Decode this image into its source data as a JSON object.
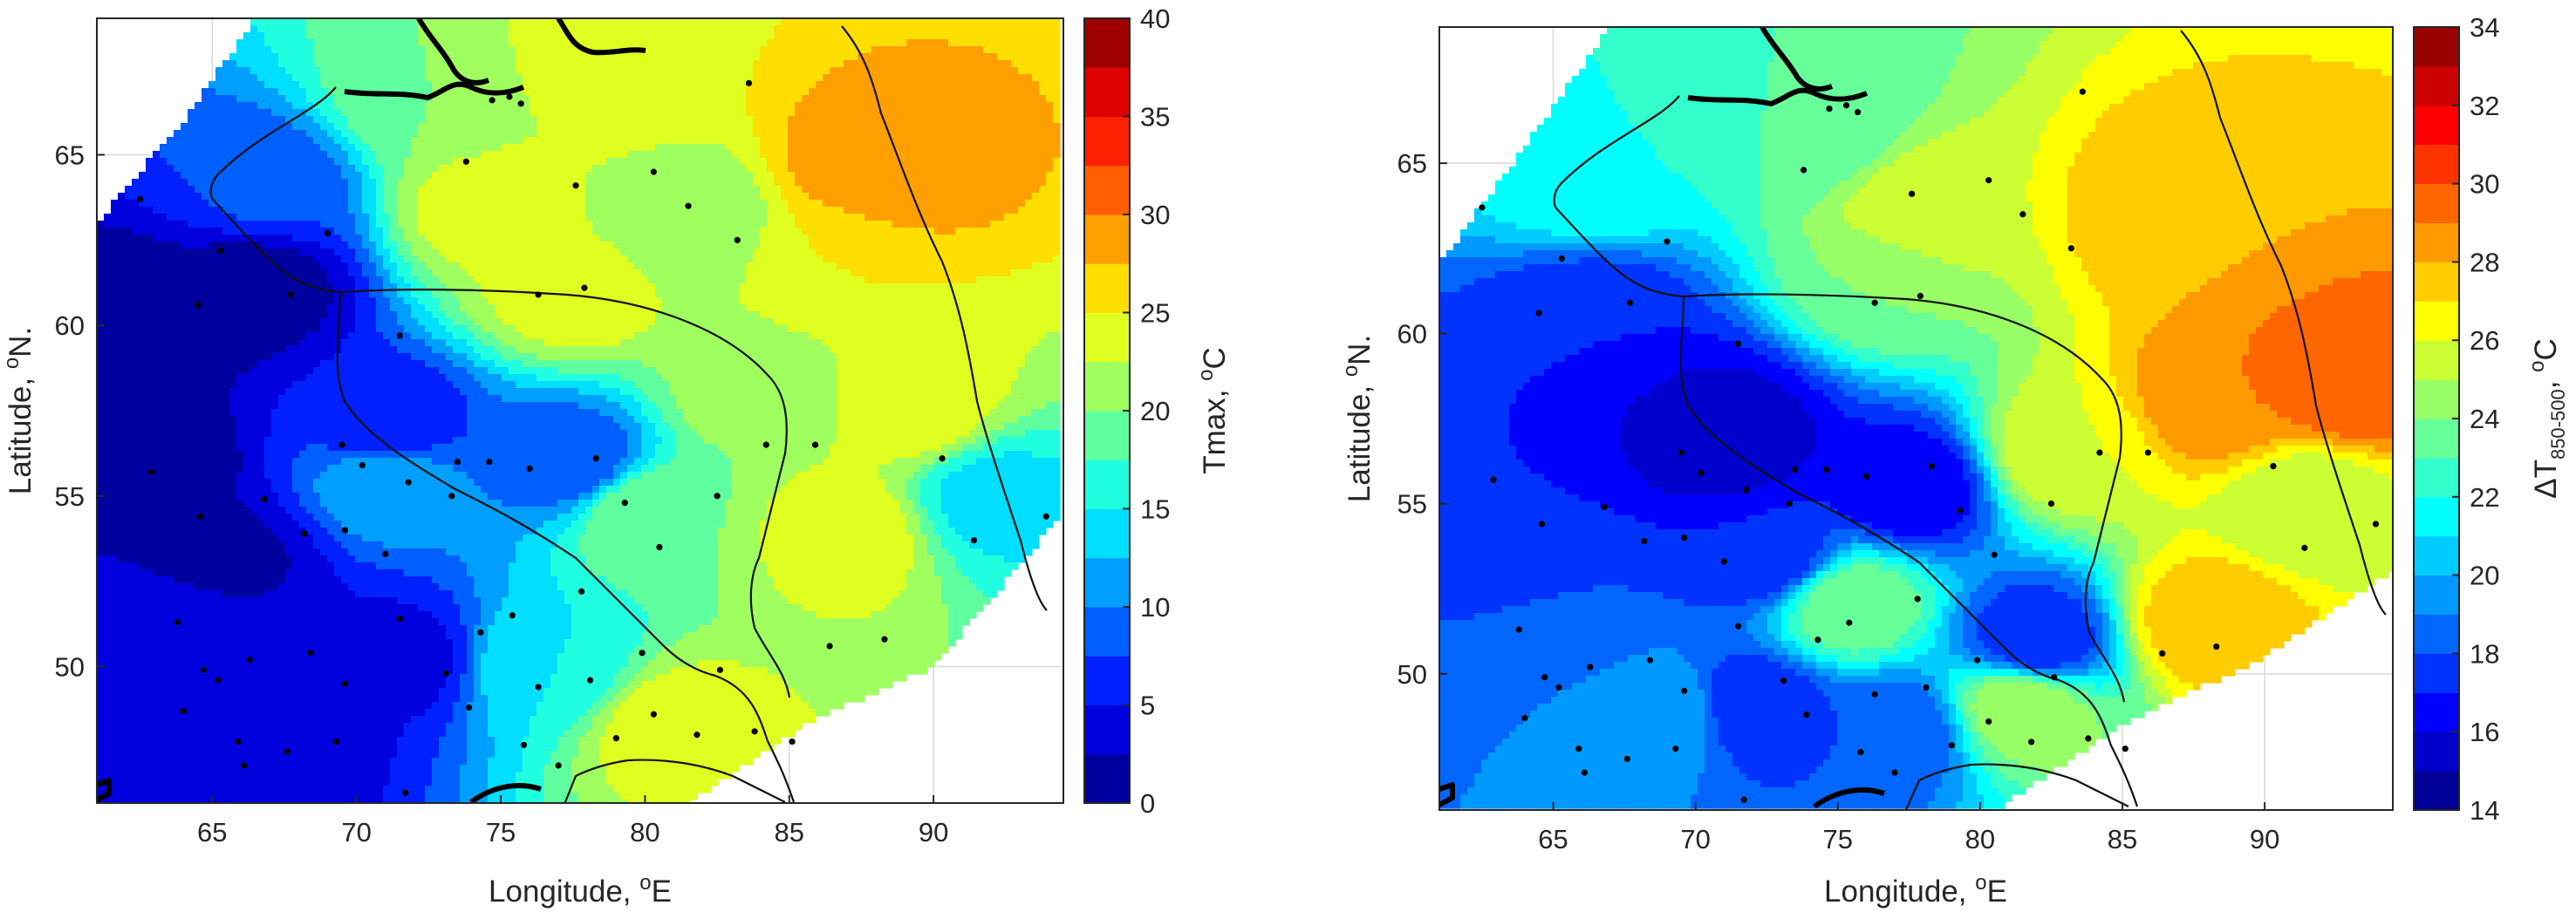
{
  "colors": {
    "jet": [
      "#00007f",
      "#0000ff",
      "#007fff",
      "#00ffff",
      "#7fff7f",
      "#ffff00",
      "#ff7f00",
      "#ff0000",
      "#7f0000"
    ],
    "station_dot": "#000000",
    "coastline": "#000000",
    "border": "#111111",
    "background": "#ffffff"
  },
  "chart_data": [
    {
      "type": "heatmap",
      "subtype": "filled contour map",
      "x": {
        "label": "Longitude,",
        "label_sup": "o",
        "label_tail": "E",
        "range": [
          61,
          94.5
        ],
        "ticks": [
          65,
          70,
          75,
          80,
          85,
          90
        ]
      },
      "y": {
        "label": "Latitude,",
        "label_sup": "o",
        "label_tail": "N.",
        "range": [
          46,
          69
        ],
        "ticks": [
          50,
          55,
          60,
          65
        ]
      },
      "colorbar": {
        "label": "Tmax,",
        "label_sup": "o",
        "label_tail": "C",
        "range": [
          0,
          40
        ],
        "ticks": [
          0,
          5,
          10,
          15,
          20,
          25,
          30,
          35,
          40
        ]
      },
      "grid": true,
      "field_blobs": [
        {
          "lon": 62.2,
          "lat": 60.2,
          "value": 0
        },
        {
          "lon": 66.5,
          "lat": 61.2,
          "value": 1
        },
        {
          "lon": 63.0,
          "lat": 56.0,
          "value": 1
        },
        {
          "lon": 65.5,
          "lat": 53.2,
          "value": 2
        },
        {
          "lon": 64.5,
          "lat": 50.8,
          "value": 4
        },
        {
          "lon": 67.0,
          "lat": 48.0,
          "value": 3
        },
        {
          "lon": 71.5,
          "lat": 50.2,
          "value": 4
        },
        {
          "lon": 71.0,
          "lat": 57.0,
          "value": 5
        },
        {
          "lon": 67.0,
          "lat": 64.0,
          "value": 8
        },
        {
          "lon": 71.0,
          "lat": 55.5,
          "value": 12
        },
        {
          "lon": 77.5,
          "lat": 56.0,
          "value": 8
        },
        {
          "lon": 76.5,
          "lat": 50.0,
          "value": 15
        },
        {
          "lon": 80.0,
          "lat": 54.5,
          "value": 20
        },
        {
          "lon": 72.5,
          "lat": 66.5,
          "value": 20
        },
        {
          "lon": 74.5,
          "lat": 63.5,
          "value": 24
        },
        {
          "lon": 77.5,
          "lat": 61.0,
          "value": 24
        },
        {
          "lon": 79.0,
          "lat": 67.5,
          "value": 25
        },
        {
          "lon": 81.5,
          "lat": 63.0,
          "value": 20
        },
        {
          "lon": 83.5,
          "lat": 58.0,
          "value": 21
        },
        {
          "lon": 86.5,
          "lat": 62.0,
          "value": 25
        },
        {
          "lon": 88.0,
          "lat": 64.5,
          "value": 30
        },
        {
          "lon": 89.5,
          "lat": 57.5,
          "value": 24
        },
        {
          "lon": 87.0,
          "lat": 54.0,
          "value": 24
        },
        {
          "lon": 81.0,
          "lat": 48.2,
          "value": 24
        },
        {
          "lon": 92.0,
          "lat": 55.0,
          "value": 14
        }
      ]
    },
    {
      "type": "heatmap",
      "subtype": "filled contour map",
      "x": {
        "label": "Longitude,",
        "label_sup": "o",
        "label_tail": "E",
        "range": [
          61,
          94.5
        ],
        "ticks": [
          65,
          70,
          75,
          80,
          85,
          90
        ]
      },
      "y": {
        "label": "Latitude,",
        "label_sup": "o",
        "label_tail": "N.",
        "range": [
          46,
          69
        ],
        "ticks": [
          50,
          55,
          60,
          65
        ]
      },
      "colorbar": {
        "label_prefix": "ΔT",
        "label_sub": "850-500",
        "label_mid": ",",
        "label_sup": "o",
        "label_tail": "C",
        "range": [
          14,
          34
        ],
        "ticks": [
          14,
          16,
          18,
          20,
          22,
          24,
          26,
          28,
          30,
          32,
          34
        ]
      },
      "grid": true,
      "field_blobs": [
        {
          "lon": 63.0,
          "lat": 56.0,
          "value": 17
        },
        {
          "lon": 66.5,
          "lat": 60.5,
          "value": 17
        },
        {
          "lon": 70.0,
          "lat": 57.5,
          "value": 16
        },
        {
          "lon": 71.0,
          "lat": 57.0,
          "value": 15
        },
        {
          "lon": 65.5,
          "lat": 52.0,
          "value": 18
        },
        {
          "lon": 72.5,
          "lat": 53.5,
          "value": 17
        },
        {
          "lon": 77.5,
          "lat": 55.5,
          "value": 16
        },
        {
          "lon": 72.0,
          "lat": 49.0,
          "value": 17
        },
        {
          "lon": 77.0,
          "lat": 48.3,
          "value": 18
        },
        {
          "lon": 69.0,
          "lat": 48.8,
          "value": 20
        },
        {
          "lon": 82.0,
          "lat": 51.0,
          "value": 17
        },
        {
          "lon": 66.5,
          "lat": 64.5,
          "value": 22
        },
        {
          "lon": 74.0,
          "lat": 66.0,
          "value": 23
        },
        {
          "lon": 76.5,
          "lat": 61.5,
          "value": 24
        },
        {
          "lon": 75.5,
          "lat": 52.0,
          "value": 24
        },
        {
          "lon": 78.0,
          "lat": 63.5,
          "value": 26
        },
        {
          "lon": 83.0,
          "lat": 56.5,
          "value": 26
        },
        {
          "lon": 81.5,
          "lat": 49.0,
          "value": 25
        },
        {
          "lon": 87.0,
          "lat": 63.5,
          "value": 28
        },
        {
          "lon": 88.5,
          "lat": 58.0,
          "value": 29
        },
        {
          "lon": 88.0,
          "lat": 51.5,
          "value": 28
        },
        {
          "lon": 93.0,
          "lat": 58.5,
          "value": 30
        },
        {
          "lon": 91.5,
          "lat": 55.0,
          "value": 25
        }
      ]
    }
  ]
}
